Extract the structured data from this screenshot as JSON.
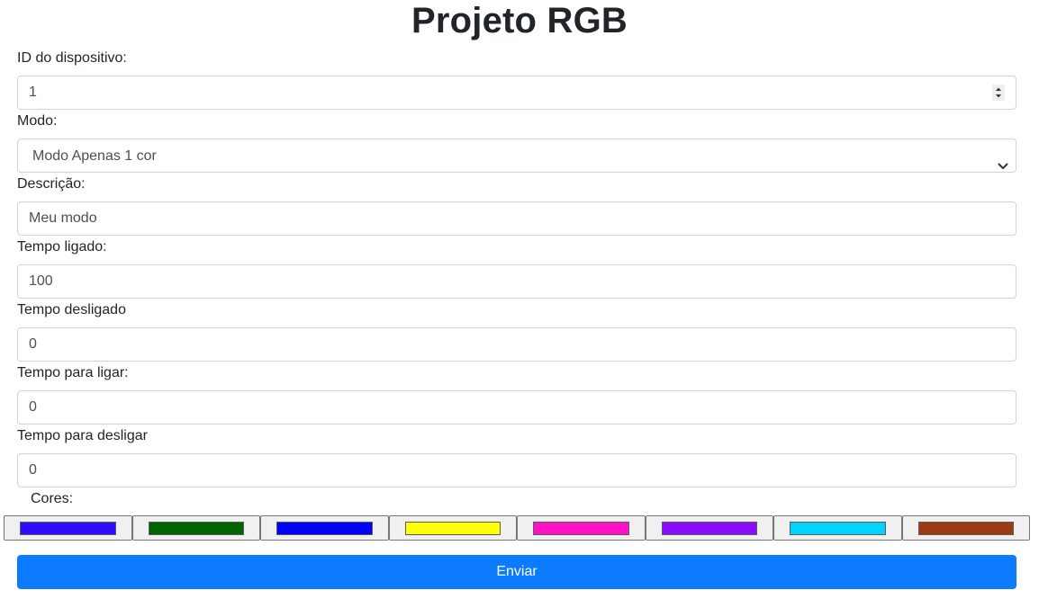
{
  "page": {
    "title": "Projeto RGB"
  },
  "form": {
    "device_id": {
      "label": "ID do dispositivo:",
      "value": "1"
    },
    "mode": {
      "label": "Modo:",
      "selected": "Modo Apenas 1 cor"
    },
    "description": {
      "label": "Descrição:",
      "value": "Meu modo"
    },
    "time_on": {
      "label": "Tempo ligado:",
      "value": "100"
    },
    "time_off": {
      "label": "Tempo desligado",
      "value": "0"
    },
    "time_to_on": {
      "label": "Tempo para ligar:",
      "value": "0"
    },
    "time_to_off": {
      "label": "Tempo para desligar",
      "value": "0"
    },
    "colors_label": "Cores:",
    "colors": [
      "#2d0cff",
      "#006400",
      "#0000ff",
      "#ffff00",
      "#ff12c6",
      "#8a0dff",
      "#00d2ff",
      "#9a3b13"
    ],
    "submit_label": "Enviar"
  },
  "theme": {
    "accent": "#0d7bff"
  }
}
